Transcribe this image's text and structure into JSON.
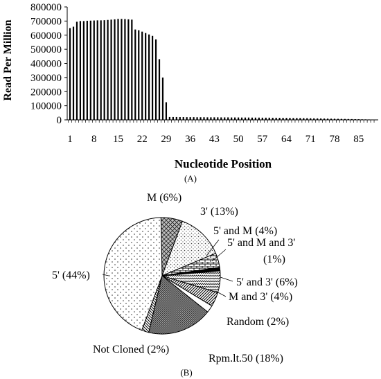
{
  "chart_data": [
    {
      "type": "bar",
      "panel_label": "(A)",
      "xlabel": "Nucleotide Position",
      "ylabel": "Read Per Million",
      "ylim": [
        0,
        800000
      ],
      "yticks": [
        0,
        100000,
        200000,
        300000,
        400000,
        500000,
        600000,
        700000,
        800000
      ],
      "xtick_labels": [
        "1",
        "8",
        "15",
        "22",
        "29",
        "36",
        "43",
        "50",
        "57",
        "64",
        "71",
        "78",
        "85"
      ],
      "xtick_positions": [
        1,
        8,
        15,
        22,
        29,
        36,
        43,
        50,
        57,
        64,
        71,
        78,
        85
      ],
      "grid": false,
      "x": [
        1,
        2,
        3,
        4,
        5,
        6,
        7,
        8,
        9,
        10,
        11,
        12,
        13,
        14,
        15,
        16,
        17,
        18,
        19,
        20,
        21,
        22,
        23,
        24,
        25,
        26,
        27,
        28,
        29,
        30,
        31,
        32,
        33,
        34,
        35,
        36,
        37,
        38,
        39,
        40,
        41,
        42,
        43,
        44,
        45,
        46,
        47,
        48,
        49,
        50,
        51,
        52,
        53,
        54,
        55,
        56,
        57,
        58,
        59,
        60,
        61,
        62,
        63,
        64,
        65,
        66,
        67,
        68,
        69,
        70,
        71,
        72,
        73,
        74,
        75,
        76,
        77,
        78,
        79,
        80,
        81,
        82,
        83,
        84,
        85,
        86,
        87,
        88,
        89
      ],
      "values": [
        650000,
        660000,
        695000,
        700000,
        700000,
        702000,
        703000,
        704000,
        705000,
        705000,
        706000,
        708000,
        710000,
        712000,
        715000,
        715000,
        714000,
        712000,
        710000,
        640000,
        635000,
        625000,
        615000,
        605000,
        595000,
        570000,
        430000,
        300000,
        125000,
        20000,
        20000,
        20000,
        19500,
        19500,
        19000,
        19000,
        19000,
        18500,
        18500,
        18500,
        18000,
        18000,
        18000,
        18000,
        17500,
        17500,
        17500,
        17000,
        17000,
        17000,
        16500,
        16500,
        16500,
        16000,
        16000,
        16000,
        15500,
        15500,
        15500,
        15000,
        15000,
        14500,
        14500,
        14000,
        14000,
        13500,
        13500,
        13000,
        12500,
        12000,
        11500,
        11000,
        10500,
        10000,
        9500,
        9000,
        8500,
        8000,
        7500,
        7000,
        6500,
        6000,
        5500,
        5000,
        4500,
        4000,
        3500,
        3000,
        2500
      ]
    },
    {
      "type": "pie",
      "panel_label": "(B)",
      "slices": [
        {
          "label": "M (6%)",
          "value": 6,
          "pattern": "cross-hatch"
        },
        {
          "label": "3' (13%)",
          "value": 13,
          "pattern": "sparse-dots"
        },
        {
          "label": "5' and M (4%)",
          "value": 4,
          "pattern": "brick"
        },
        {
          "label": "5' and M and 3' (1%)",
          "value": 1,
          "pattern": "solid-black"
        },
        {
          "label": "5' and 3' (6%)",
          "value": 6,
          "pattern": "wave"
        },
        {
          "label": "M and 3' (4%)",
          "value": 4,
          "pattern": "diagonal-dense"
        },
        {
          "label": "Random (2%)",
          "value": 2,
          "pattern": "white"
        },
        {
          "label": "Rpm.lt.50 (18%)",
          "value": 18,
          "pattern": "dense-checker"
        },
        {
          "label": "Not Cloned (2%)",
          "value": 2,
          "pattern": "diagonal"
        },
        {
          "label": "5' (44%)",
          "value": 44,
          "pattern": "dots"
        }
      ]
    }
  ]
}
